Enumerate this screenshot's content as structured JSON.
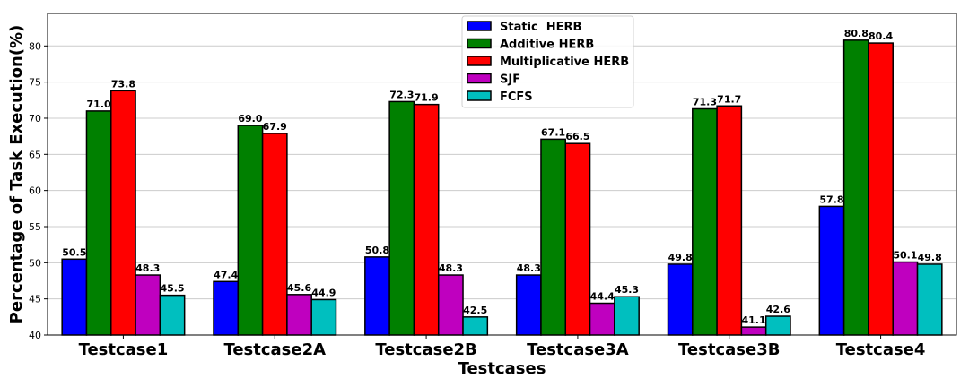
{
  "chart_data": {
    "type": "bar",
    "xlabel": "Testcases",
    "ylabel": "Percentage of Task Execution(%)",
    "ylim": [
      40,
      84.5
    ],
    "yticks": [
      40,
      45,
      50,
      55,
      60,
      65,
      70,
      75,
      80
    ],
    "grid": true,
    "legend_position": "top-center",
    "categories": [
      "Testcase1",
      "Testcase2A",
      "Testcase2B",
      "Testcase3A",
      "Testcase3B",
      "Testcase4"
    ],
    "series": [
      {
        "name": "Static  HERB",
        "color": "#0000ff",
        "values": [
          50.5,
          47.4,
          50.8,
          48.3,
          49.8,
          57.8
        ],
        "labels": [
          "50.5",
          "47.4",
          "50.8",
          "48.3",
          "49.8",
          "57.8"
        ]
      },
      {
        "name": "Additive HERB",
        "color": "#008000",
        "values": [
          71.0,
          69.0,
          72.3,
          67.1,
          71.3,
          80.8
        ],
        "labels": [
          "71.0",
          "69.0",
          "72.3",
          "67.1",
          "71.3",
          "80.8"
        ]
      },
      {
        "name": "Multiplicative HERB",
        "color": "#ff0000",
        "values": [
          73.8,
          67.9,
          71.9,
          66.5,
          71.7,
          80.4
        ],
        "labels": [
          "73.8",
          "67.9",
          "71.9",
          "66.5",
          "71.7",
          "80.4"
        ]
      },
      {
        "name": "SJF",
        "color": "#bf00bf",
        "values": [
          48.3,
          45.6,
          48.3,
          44.4,
          41.1,
          50.1
        ],
        "labels": [
          "48.3",
          "45.6",
          "48.3",
          "44.4",
          "41.1",
          "50.1"
        ]
      },
      {
        "name": "FCFS",
        "color": "#00bfbf",
        "values": [
          45.5,
          44.9,
          42.5,
          45.3,
          42.6,
          49.8
        ],
        "labels": [
          "45.5",
          "44.9",
          "42.5",
          "45.3",
          "42.6",
          "49.8"
        ]
      }
    ]
  }
}
